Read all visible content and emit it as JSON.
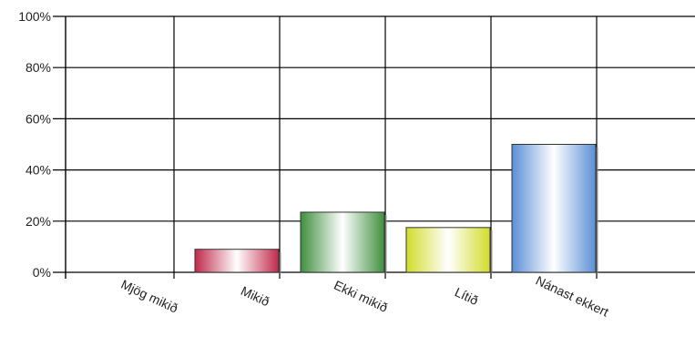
{
  "chart_data": {
    "type": "bar",
    "categories": [
      "Mjög mikið",
      "Mikið",
      "Ekki mikið",
      "Lítið",
      "Nánast ekkert"
    ],
    "values": [
      0,
      9,
      23.5,
      17.5,
      50
    ],
    "ylim": [
      0,
      100
    ],
    "yticks": [
      "0%",
      "20%",
      "40%",
      "60%",
      "80%",
      "100%"
    ],
    "ytick_values": [
      0,
      20,
      40,
      60,
      80,
      100
    ],
    "bar_colors": [
      "#888888",
      "#c0294a",
      "#3f8f3f",
      "#d2dc2a",
      "#5b8fd6"
    ],
    "grid": true,
    "legend": "none"
  }
}
